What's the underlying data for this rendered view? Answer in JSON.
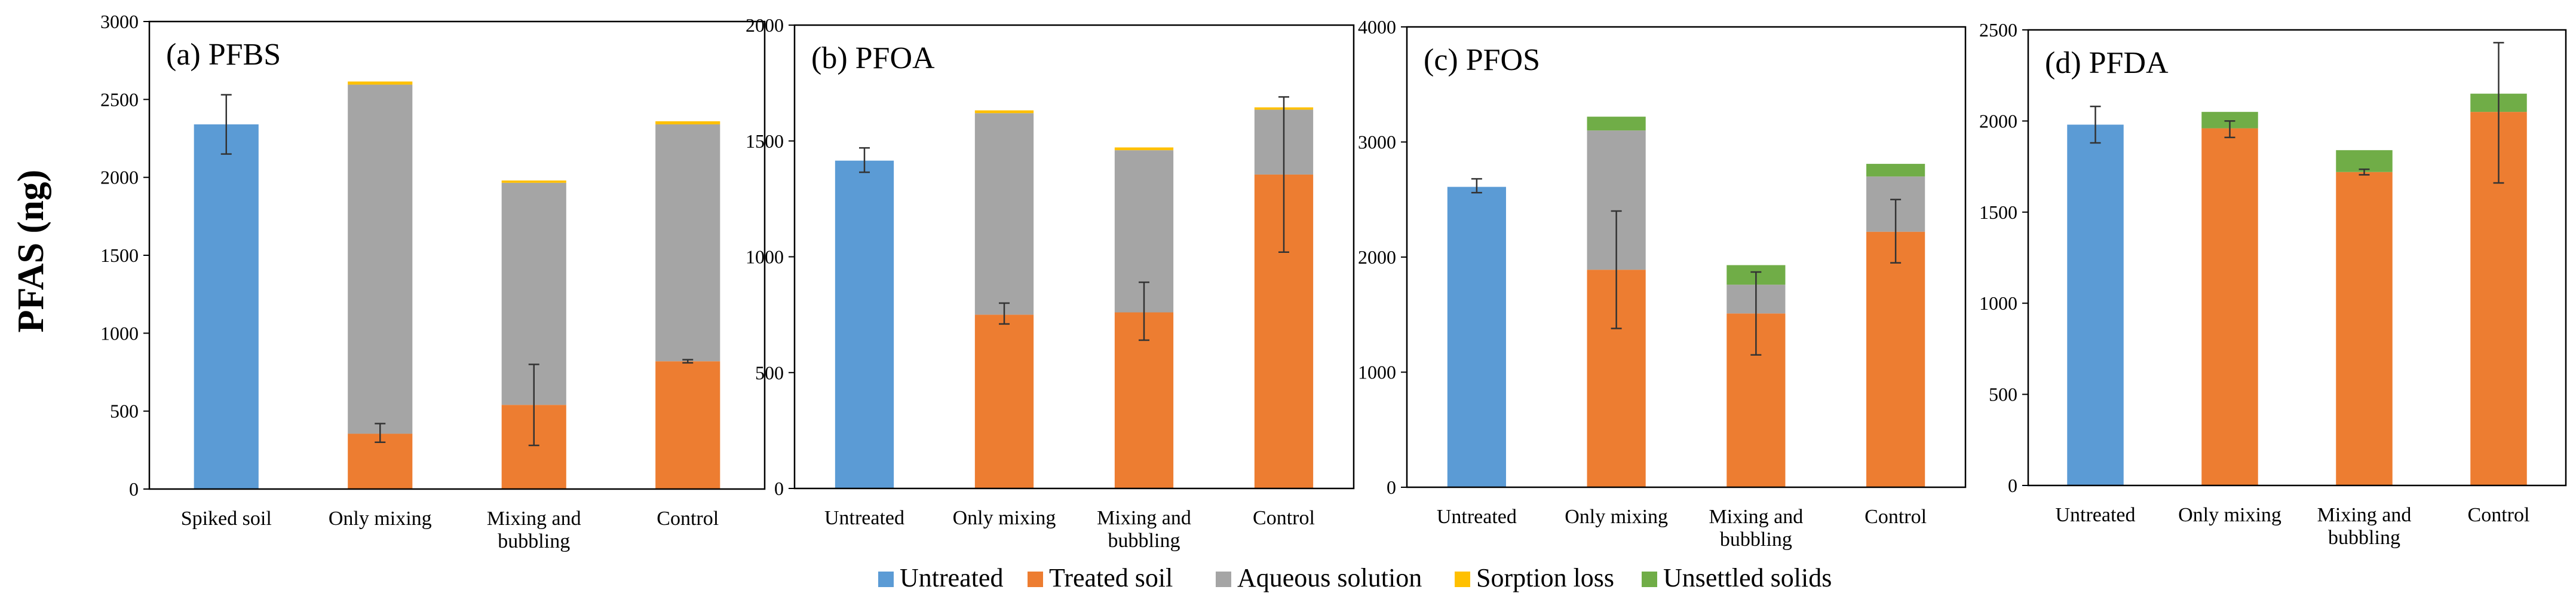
{
  "figure": {
    "ylabel": "PFAS (ng)",
    "legend": [
      {
        "label": "Untreated",
        "color": "#5B9BD5"
      },
      {
        "label": "Treated soil",
        "color": "#ED7D31"
      },
      {
        "label": "Aqueous solution",
        "color": "#A5A5A5"
      },
      {
        "label": "Sorption loss",
        "color": "#FFC000"
      },
      {
        "label": "Unsettled solids",
        "color": "#70AD47"
      }
    ]
  },
  "chart_data": [
    {
      "type": "bar",
      "stacked": true,
      "title": "(a) PFBS",
      "categories": [
        [
          "Spiked soil"
        ],
        [
          "Only mixing"
        ],
        [
          "Mixing and",
          "bubbling"
        ],
        [
          "Control"
        ]
      ],
      "ylim": [
        0,
        3000
      ],
      "yticks": [
        0,
        500,
        1000,
        1500,
        2000,
        2500,
        3000
      ],
      "series": [
        {
          "name": "Untreated",
          "values": [
            2340,
            0,
            0,
            0
          ]
        },
        {
          "name": "Treated soil",
          "values": [
            0,
            355,
            540,
            820
          ]
        },
        {
          "name": "Aqueous solution",
          "values": [
            0,
            2240,
            1425,
            1520
          ]
        },
        {
          "name": "Sorption loss",
          "values": [
            0,
            20,
            15,
            20
          ]
        },
        {
          "name": "Unsettled solids",
          "values": [
            0,
            0,
            0,
            0
          ]
        }
      ],
      "errorbars": [
        {
          "category": 0,
          "value": 2340,
          "low": 2150,
          "high": 2530
        },
        {
          "category": 1,
          "value": 355,
          "low": 300,
          "high": 420
        },
        {
          "category": 2,
          "value": 540,
          "low": 280,
          "high": 800
        },
        {
          "category": 3,
          "value": 820,
          "low": 810,
          "high": 830
        }
      ]
    },
    {
      "type": "bar",
      "stacked": true,
      "title": "(b) PFOA",
      "categories": [
        [
          "Untreated"
        ],
        [
          "Only mixing"
        ],
        [
          "Mixing and",
          "bubbling"
        ],
        [
          "Control"
        ]
      ],
      "ylim": [
        0,
        2000
      ],
      "yticks": [
        0,
        500,
        1000,
        1500,
        2000
      ],
      "series": [
        {
          "name": "Untreated",
          "values": [
            1415,
            0,
            0,
            0
          ]
        },
        {
          "name": "Treated soil",
          "values": [
            0,
            750,
            760,
            1355
          ]
        },
        {
          "name": "Aqueous solution",
          "values": [
            0,
            870,
            700,
            280
          ]
        },
        {
          "name": "Sorption loss",
          "values": [
            0,
            12,
            12,
            10
          ]
        },
        {
          "name": "Unsettled solids",
          "values": [
            0,
            0,
            0,
            0
          ]
        }
      ],
      "errorbars": [
        {
          "category": 0,
          "value": 1415,
          "low": 1365,
          "high": 1470
        },
        {
          "category": 1,
          "value": 750,
          "low": 710,
          "high": 800
        },
        {
          "category": 2,
          "value": 760,
          "low": 640,
          "high": 890
        },
        {
          "category": 3,
          "value": 1355,
          "low": 1020,
          "high": 1690
        }
      ]
    },
    {
      "type": "bar",
      "stacked": true,
      "title": "(c) PFOS",
      "categories": [
        [
          "Untreated"
        ],
        [
          "Only mixing"
        ],
        [
          "Mixing and",
          "bubbling"
        ],
        [
          "Control"
        ]
      ],
      "ylim": [
        0,
        4000
      ],
      "yticks": [
        0,
        1000,
        2000,
        3000,
        4000
      ],
      "series": [
        {
          "name": "Untreated",
          "values": [
            2610,
            0,
            0,
            0
          ]
        },
        {
          "name": "Treated soil",
          "values": [
            0,
            1890,
            1510,
            2220
          ]
        },
        {
          "name": "Aqueous solution",
          "values": [
            0,
            1210,
            250,
            480
          ]
        },
        {
          "name": "Sorption loss",
          "values": [
            0,
            0,
            0,
            0
          ]
        },
        {
          "name": "Unsettled solids",
          "values": [
            0,
            120,
            170,
            110
          ]
        }
      ],
      "errorbars": [
        {
          "category": 0,
          "value": 2610,
          "low": 2560,
          "high": 2680
        },
        {
          "category": 1,
          "value": 1890,
          "low": 1380,
          "high": 2400
        },
        {
          "category": 2,
          "value": 1510,
          "low": 1150,
          "high": 1870
        },
        {
          "category": 3,
          "value": 2220,
          "low": 1950,
          "high": 2500
        }
      ]
    },
    {
      "type": "bar",
      "stacked": true,
      "title": "(d) PFDA",
      "categories": [
        [
          "Untreated"
        ],
        [
          "Only mixing"
        ],
        [
          "Mixing and",
          "bubbling"
        ],
        [
          "Control"
        ]
      ],
      "ylim": [
        0,
        2500
      ],
      "yticks": [
        0,
        500,
        1000,
        1500,
        2000,
        2500
      ],
      "series": [
        {
          "name": "Untreated",
          "values": [
            1980,
            0,
            0,
            0
          ]
        },
        {
          "name": "Treated soil",
          "values": [
            0,
            1960,
            1720,
            2050
          ]
        },
        {
          "name": "Aqueous solution",
          "values": [
            0,
            0,
            0,
            0
          ]
        },
        {
          "name": "Sorption loss",
          "values": [
            0,
            0,
            0,
            0
          ]
        },
        {
          "name": "Unsettled solids",
          "values": [
            0,
            90,
            120,
            100
          ]
        }
      ],
      "errorbars": [
        {
          "category": 0,
          "value": 1980,
          "low": 1880,
          "high": 2080
        },
        {
          "category": 1,
          "value": 1960,
          "low": 1910,
          "high": 2000
        },
        {
          "category": 2,
          "value": 1720,
          "low": 1705,
          "high": 1735
        },
        {
          "category": 3,
          "value": 2050,
          "low": 1660,
          "high": 2430
        }
      ]
    }
  ]
}
